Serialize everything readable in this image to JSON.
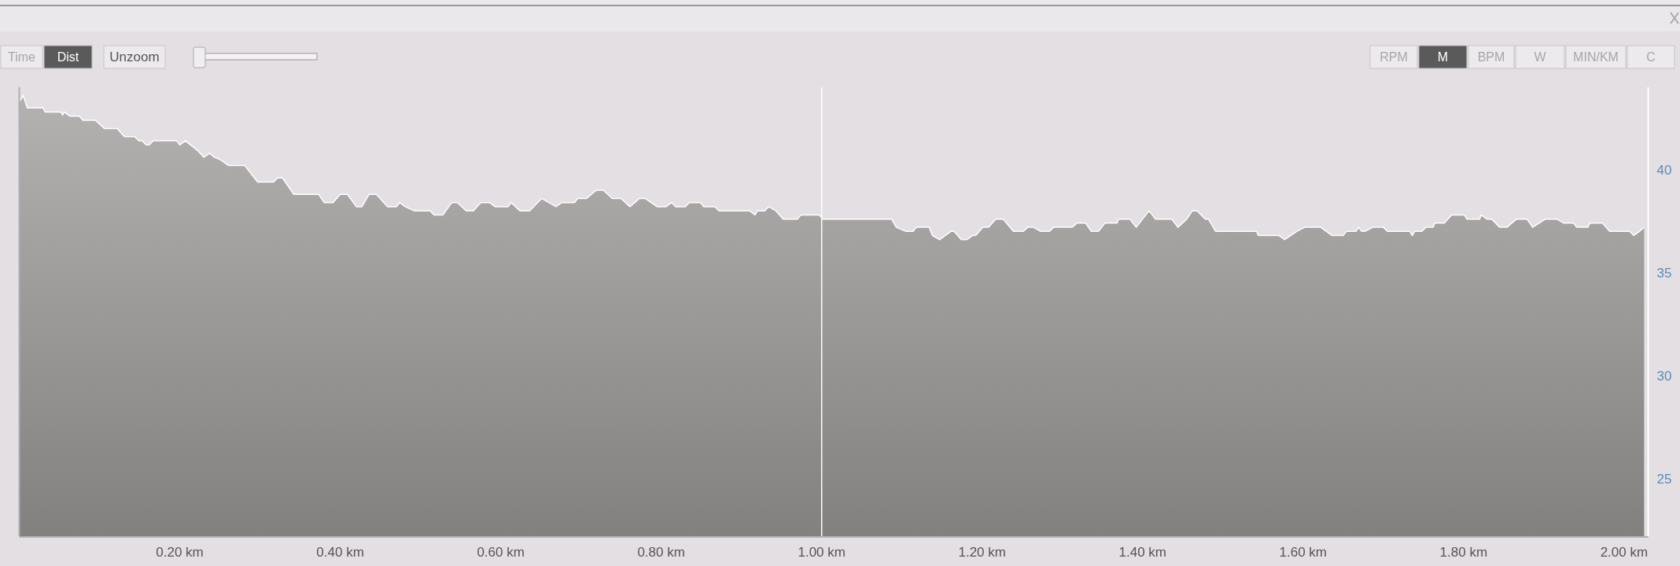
{
  "chart_data": {
    "type": "area",
    "x": [
      0,
      0.005,
      0.01,
      0.016,
      0.03,
      0.032,
      0.052,
      0.054,
      0.056,
      0.063,
      0.075,
      0.079,
      0.095,
      0.106,
      0.122,
      0.131,
      0.144,
      0.149,
      0.153,
      0.158,
      0.162,
      0.167,
      0.196,
      0.2,
      0.207,
      0.223,
      0.23,
      0.237,
      0.243,
      0.25,
      0.261,
      0.281,
      0.297,
      0.317,
      0.322,
      0.328,
      0.342,
      0.373,
      0.38,
      0.391,
      0.4,
      0.409,
      0.42,
      0.427,
      0.436,
      0.445,
      0.459,
      0.47,
      0.474,
      0.481,
      0.492,
      0.512,
      0.517,
      0.528,
      0.539,
      0.546,
      0.557,
      0.566,
      0.575,
      0.586,
      0.593,
      0.609,
      0.613,
      0.624,
      0.636,
      0.651,
      0.66,
      0.669,
      0.676,
      0.692,
      0.696,
      0.707,
      0.719,
      0.728,
      0.739,
      0.75,
      0.761,
      0.773,
      0.78,
      0.795,
      0.806,
      0.813,
      0.818,
      0.83,
      0.835,
      0.849,
      0.853,
      0.867,
      0.872,
      0.91,
      0.917,
      0.92,
      0.929,
      0.934,
      0.943,
      0.952,
      0.97,
      0.974,
      0.997,
      1.001,
      1.087,
      1.093,
      1.105,
      1.114,
      1.118,
      1.134,
      1.138,
      1.147,
      1.154,
      1.161,
      1.165,
      1.174,
      1.181,
      1.188,
      1.192,
      1.201,
      1.208,
      1.217,
      1.226,
      1.239,
      1.251,
      1.257,
      1.264,
      1.273,
      1.284,
      1.289,
      1.312,
      1.318,
      1.329,
      1.336,
      1.345,
      1.353,
      1.368,
      1.37,
      1.384,
      1.392,
      1.408,
      1.416,
      1.436,
      1.444,
      1.455,
      1.462,
      1.468,
      1.478,
      1.482,
      1.491,
      1.542,
      1.544,
      1.57,
      1.577,
      1.592,
      1.602,
      1.622,
      1.636,
      1.65,
      1.654,
      1.666,
      1.669,
      1.673,
      1.677,
      1.687,
      1.7,
      1.705,
      1.733,
      1.736,
      1.739,
      1.748,
      1.753,
      1.762,
      1.764,
      1.776,
      1.785,
      1.801,
      1.804,
      1.82,
      1.822,
      1.829,
      1.835,
      1.845,
      1.854,
      1.866,
      1.879,
      1.886,
      1.902,
      1.916,
      1.925,
      1.937,
      1.941,
      1.955,
      1.957,
      1.973,
      1.982,
      2.007,
      2.012,
      2.019,
      2.025
    ],
    "series": [
      {
        "color": "#b4b1b1",
        "values": [
          43.3,
          43.6,
          43.0,
          43.0,
          43.0,
          42.8,
          42.8,
          42.65,
          42.8,
          42.6,
          42.6,
          42.4,
          42.4,
          42.0,
          42.0,
          41.6,
          41.6,
          41.4,
          41.4,
          41.2,
          41.2,
          41.4,
          41.4,
          41.2,
          41.4,
          40.9,
          40.6,
          40.8,
          40.6,
          40.5,
          40.2,
          40.2,
          39.4,
          39.4,
          39.6,
          39.6,
          38.8,
          38.8,
          38.4,
          38.4,
          38.8,
          38.8,
          38.2,
          38.2,
          38.8,
          38.8,
          38.2,
          38.2,
          38.4,
          38.2,
          38.0,
          38.0,
          37.8,
          37.8,
          38.4,
          38.4,
          38.0,
          38.0,
          38.4,
          38.4,
          38.2,
          38.2,
          38.4,
          38.0,
          38.0,
          38.6,
          38.4,
          38.2,
          38.4,
          38.4,
          38.6,
          38.6,
          39.0,
          39.0,
          38.6,
          38.6,
          38.2,
          38.6,
          38.6,
          38.2,
          38.2,
          38.4,
          38.2,
          38.2,
          38.4,
          38.4,
          38.2,
          38.2,
          38.0,
          38.0,
          37.8,
          38.0,
          38.0,
          38.2,
          38.0,
          37.6,
          37.6,
          37.8,
          37.8,
          37.6,
          37.6,
          37.2,
          37.0,
          37.0,
          37.2,
          37.2,
          36.8,
          36.6,
          36.8,
          37.0,
          37.0,
          36.6,
          36.6,
          36.8,
          36.8,
          37.2,
          37.2,
          37.6,
          37.6,
          37.0,
          37.0,
          37.2,
          37.2,
          37.0,
          37.0,
          37.2,
          37.2,
          37.4,
          37.4,
          37.0,
          37.0,
          37.4,
          37.4,
          37.6,
          37.6,
          37.2,
          38.0,
          37.6,
          37.6,
          37.2,
          37.6,
          38.0,
          38.0,
          37.6,
          37.6,
          37.0,
          37.0,
          36.8,
          36.8,
          36.6,
          37.0,
          37.2,
          37.2,
          36.8,
          36.8,
          37.0,
          37.0,
          37.2,
          37.0,
          37.0,
          37.2,
          37.2,
          37.0,
          37.0,
          36.8,
          37.0,
          37.0,
          37.2,
          37.2,
          37.4,
          37.4,
          37.8,
          37.8,
          37.6,
          37.6,
          37.8,
          37.6,
          37.6,
          37.2,
          37.2,
          37.6,
          37.6,
          37.2,
          37.6,
          37.6,
          37.4,
          37.4,
          37.2,
          37.2,
          37.4,
          37.4,
          37.0,
          37.0,
          36.8,
          37.0,
          37.2
        ]
      }
    ],
    "xlim": [
      0,
      2.03
    ],
    "ylim": [
      22.2,
      44
    ],
    "xticks": [
      {
        "value": 0.2,
        "label": "0.20 km"
      },
      {
        "value": 0.4,
        "label": "0.40 km"
      },
      {
        "value": 0.6,
        "label": "0.60 km"
      },
      {
        "value": 0.8,
        "label": "0.80 km"
      },
      {
        "value": 1.0,
        "label": "1.00 km"
      },
      {
        "value": 1.2,
        "label": "1.20 km"
      },
      {
        "value": 1.4,
        "label": "1.40 km"
      },
      {
        "value": 1.6,
        "label": "1.60 km"
      },
      {
        "value": 1.8,
        "label": "1.80 km"
      },
      {
        "value": 2.0,
        "label": "2.00 km"
      }
    ],
    "yticks": [
      25,
      30,
      35,
      40
    ],
    "ref_lines": [
      {
        "axis": "x",
        "value": 1.0,
        "color": "#ffffff"
      }
    ],
    "annotations": [
      "Time",
      "Dist",
      "Unzoom",
      "RPM",
      "M",
      "BPM",
      "W",
      "MIN/KM",
      "C"
    ],
    "grid": false,
    "marker": "none"
  }
}
